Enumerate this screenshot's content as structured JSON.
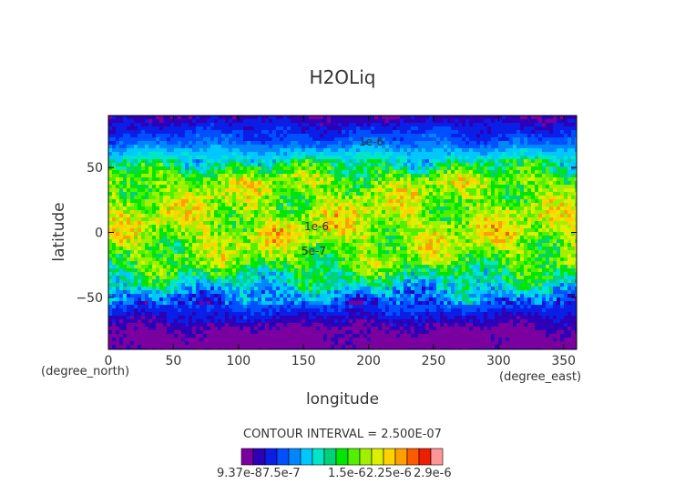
{
  "chart_data": {
    "type": "heatmap",
    "title": "H2OLiq",
    "xlabel": "longitude",
    "ylabel": "latitude",
    "x_units": "(degree_east)",
    "y_units": "(degree_north)",
    "xlim": [
      0,
      360
    ],
    "ylim": [
      -90,
      90
    ],
    "x_ticks": [
      0,
      50,
      100,
      150,
      200,
      250,
      300,
      350
    ],
    "y_ticks": [
      -50,
      0,
      50
    ],
    "contour_interval_text": "CONTOUR INTERVAL = 2.500E-07",
    "contour_labels": [
      "1e-6",
      "1e-6",
      "1e-6",
      "1e-6",
      "5e-7"
    ],
    "colorbar_labels": [
      "9.37e-8",
      "7.5e-7",
      "1.5e-6",
      "2.25e-6",
      "2.9e-6"
    ],
    "colorbar_colors": [
      "#7b00a0",
      "#2d00b8",
      "#0a1ee6",
      "#0050ff",
      "#0087ff",
      "#00c8ff",
      "#00e6c8",
      "#00d278",
      "#00e600",
      "#50f000",
      "#a0f000",
      "#dcf000",
      "#ffd200",
      "#ffa000",
      "#ff5a00",
      "#f01e00",
      "#ff9696"
    ],
    "colorbar_ticks_at": [
      0,
      3,
      6,
      9,
      12,
      16
    ],
    "latitude_profile": [
      {
        "lat": -90,
        "value": 0.09
      },
      {
        "lat": -75,
        "value": 0.2
      },
      {
        "lat": -62,
        "value": 0.5
      },
      {
        "lat": -50,
        "value": 0.8
      },
      {
        "lat": -35,
        "value": 1.3
      },
      {
        "lat": -20,
        "value": 1.7
      },
      {
        "lat": 0,
        "value": 1.9
      },
      {
        "lat": 20,
        "value": 1.8
      },
      {
        "lat": 40,
        "value": 1.8
      },
      {
        "lat": 55,
        "value": 1.2
      },
      {
        "lat": 70,
        "value": 0.7
      },
      {
        "lat": 90,
        "value": 0.3
      }
    ]
  }
}
